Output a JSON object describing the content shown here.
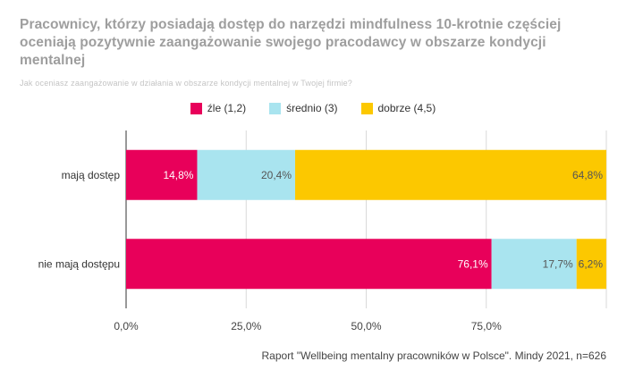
{
  "title": "Pracownicy, którzy posiadają dostęp do narzędzi mindfulness 10-krotnie częściej oceniają pozytywnie zaangażowanie swojego pracodawcy w obszarze kondycji mentalnej",
  "subtitle": "Jak oceniasz zaangażowanie w działania w obszarze kondycji mentalnej w Twojej firmie?",
  "source": "Raport \"Wellbeing mentalny pracowników w Polsce\". Mindy 2021, n=626",
  "colors": {
    "zle": "#e8005a",
    "srednio": "#a9e4ef",
    "dobrze": "#fcc800"
  },
  "chart_data": {
    "type": "bar",
    "orientation": "horizontal",
    "stacked": true,
    "categories": [
      "mają dostęp",
      "nie mają dostępu"
    ],
    "series": [
      {
        "name": "źle (1,2)",
        "key": "zle",
        "values": [
          14.8,
          76.1
        ],
        "labels": [
          "14,8%",
          "76,1%"
        ],
        "label_color": "#ffffff"
      },
      {
        "name": "średnio (3)",
        "key": "srednio",
        "values": [
          20.4,
          17.7
        ],
        "labels": [
          "20,4%",
          "17,7%"
        ],
        "label_color": "#555555"
      },
      {
        "name": "dobrze (4,5)",
        "key": "dobrze",
        "values": [
          64.8,
          6.2
        ],
        "labels": [
          "64,8%",
          "6,2%"
        ],
        "label_color": "#555555"
      }
    ],
    "xlim": [
      0,
      100
    ],
    "x_ticks": [
      0,
      25,
      50,
      75
    ],
    "x_tick_labels": [
      "0,0%",
      "25,0%",
      "50,0%",
      "75,0%"
    ],
    "grid": true,
    "legend_position": "top"
  }
}
